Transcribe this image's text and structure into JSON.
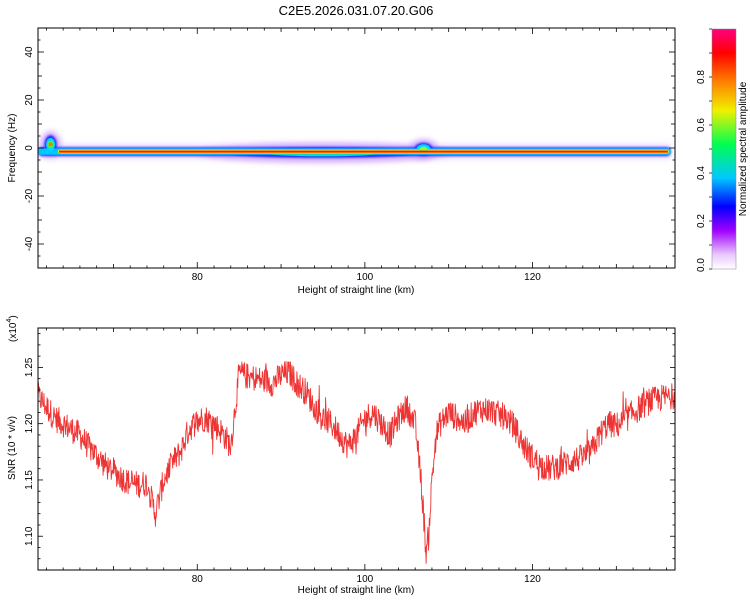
{
  "figure_title": "C2E5.2026.031.07.20.G06",
  "chart_data": [
    {
      "type": "heatmap",
      "title": "C2E5.2026.031.07.20.G06",
      "xlabel": "Height of straight line (km)",
      "ylabel": "Frequency (Hz)",
      "xlim": [
        61,
        137
      ],
      "ylim": [
        -50,
        50
      ],
      "x_ticks": [
        80,
        100,
        120
      ],
      "y_ticks": [
        -40,
        -20,
        0,
        20,
        40
      ],
      "tick_labels_x": [
        "80",
        "100",
        "120"
      ],
      "tick_labels_y": [
        "-40",
        "-20",
        "0",
        "20",
        "40"
      ],
      "colorbar": {
        "label": "Normalized spectral amplitude",
        "range": [
          0,
          1
        ],
        "ticks": [
          0.0,
          0.2,
          0.4,
          0.6,
          0.8
        ],
        "tick_labels": [
          "0.0",
          "0.2",
          "0.4",
          "0.6",
          "0.8"
        ],
        "colormap": [
          "#ffffff",
          "#e8c8ff",
          "#a000ff",
          "#0000ff",
          "#00c8ff",
          "#00ff50",
          "#f0f000",
          "#ff8000",
          "#ff0000",
          "#ff0080"
        ]
      },
      "ridge": {
        "frequency_hz": -1.5,
        "peak_amplitude": 0.9,
        "features": [
          {
            "x": 62.5,
            "freq": 1.5,
            "amplitude": 0.95
          },
          {
            "x": 95,
            "freq": -2,
            "amplitude": 0.4
          },
          {
            "x": 107,
            "freq": -0.5,
            "amplitude": 0.45
          }
        ]
      }
    },
    {
      "type": "line",
      "xlabel": "Height of straight line (km)",
      "ylabel": "SNR (10 * v/v)",
      "y_scale_label": "(x10",
      "y_scale_exponent": "4",
      "y_scale_suffix": ")",
      "xlim": [
        61,
        137
      ],
      "ylim": [
        1.07,
        1.285
      ],
      "x_ticks": [
        80,
        100,
        120
      ],
      "y_ticks": [
        1.1,
        1.15,
        1.2,
        1.25
      ],
      "tick_labels_x": [
        "80",
        "100",
        "120"
      ],
      "tick_labels_y": [
        "1.10",
        "1.15",
        "1.20",
        "1.25"
      ],
      "color": "#ee3333",
      "series": [
        {
          "name": "SNR",
          "x": [
            61,
            62,
            63,
            64,
            65,
            66,
            67,
            68,
            69,
            70,
            71,
            72,
            73,
            74,
            75,
            76,
            77,
            78,
            79,
            80,
            81,
            82,
            83,
            84,
            85,
            86,
            87,
            88,
            89,
            90,
            91,
            92,
            93,
            94,
            95,
            96,
            97,
            98,
            99,
            100,
            101,
            102,
            103,
            104,
            105,
            106,
            106.5,
            107,
            107.3,
            107.6,
            108,
            108.5,
            109,
            110,
            111,
            112,
            113,
            114,
            115,
            116,
            117,
            118,
            119,
            120,
            121,
            122,
            123,
            124,
            125,
            126,
            127,
            128,
            129,
            130,
            131,
            132,
            133,
            134,
            135,
            136,
            137
          ],
          "y": [
            1.225,
            1.215,
            1.205,
            1.2,
            1.195,
            1.19,
            1.18,
            1.172,
            1.163,
            1.158,
            1.152,
            1.147,
            1.146,
            1.147,
            1.12,
            1.15,
            1.165,
            1.175,
            1.195,
            1.203,
            1.205,
            1.2,
            1.192,
            1.18,
            1.245,
            1.242,
            1.24,
            1.238,
            1.236,
            1.243,
            1.245,
            1.235,
            1.228,
            1.215,
            1.205,
            1.2,
            1.19,
            1.18,
            1.19,
            1.205,
            1.21,
            1.2,
            1.19,
            1.205,
            1.215,
            1.2,
            1.165,
            1.12,
            1.085,
            1.1,
            1.15,
            1.19,
            1.2,
            1.21,
            1.205,
            1.2,
            1.21,
            1.213,
            1.212,
            1.208,
            1.205,
            1.195,
            1.18,
            1.17,
            1.163,
            1.16,
            1.162,
            1.165,
            1.168,
            1.17,
            1.175,
            1.19,
            1.2,
            1.198,
            1.203,
            1.21,
            1.215,
            1.22,
            1.222,
            1.224,
            1.225
          ],
          "noise_amplitude": 0.012
        }
      ]
    }
  ]
}
